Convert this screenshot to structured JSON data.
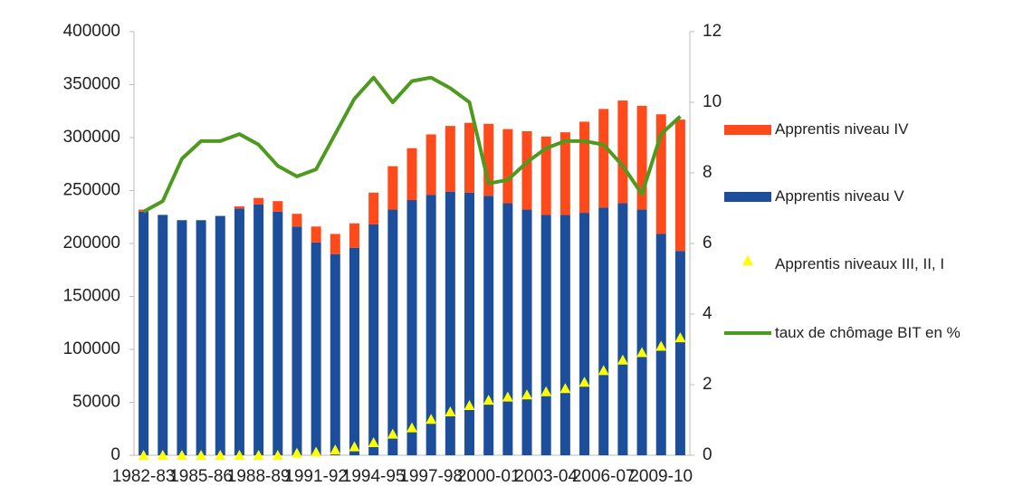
{
  "chart_data": {
    "type": "bar",
    "categories": [
      "1982-83",
      null,
      null,
      "1985-86",
      null,
      null,
      "1988-89",
      null,
      null,
      "1991-92",
      null,
      null,
      "1994-95",
      null,
      null,
      "1997-98",
      null,
      null,
      "2000-01",
      null,
      null,
      "2003-04",
      null,
      null,
      "2006-07",
      null,
      null,
      "2009-10",
      null
    ],
    "series": [
      {
        "name": "Apprentis niveau IV",
        "color": "#ff4a1c",
        "type": "bar",
        "values": [
          2000,
          0,
          0,
          0,
          0,
          2000,
          6000,
          10000,
          12000,
          15000,
          19000,
          23000,
          30000,
          41000,
          49000,
          57000,
          62000,
          66000,
          68000,
          70000,
          74000,
          74000,
          78000,
          86000,
          93000,
          97000,
          98000,
          113000,
          124000
        ]
      },
      {
        "name": "Apprentis niveau V",
        "color": "#1c4e9c",
        "type": "bar",
        "values": [
          230000,
          227000,
          222000,
          222000,
          226000,
          233000,
          237000,
          230000,
          216000,
          201000,
          190000,
          196000,
          218000,
          232000,
          241000,
          246000,
          249000,
          248000,
          245000,
          238000,
          232000,
          227000,
          227000,
          229000,
          234000,
          238000,
          232000,
          209000,
          193000
        ]
      },
      {
        "name": "Apprentis niveaux III, II, I",
        "color": "#ffff00",
        "type": "scatter",
        "values": [
          0,
          0,
          0,
          0,
          0,
          0,
          0,
          0,
          2000,
          3000,
          5000,
          8000,
          12000,
          20000,
          26000,
          34000,
          41000,
          47000,
          52000,
          55000,
          57000,
          60000,
          63000,
          69000,
          80000,
          90000,
          97000,
          103000,
          111000
        ]
      },
      {
        "name": "taux de chômage BIT en %",
        "color": "#4e9a1e",
        "type": "line",
        "axis": "y2",
        "values": [
          6.9,
          7.2,
          8.4,
          8.9,
          8.9,
          9.1,
          8.8,
          8.2,
          7.9,
          8.1,
          9.1,
          10.1,
          10.7,
          10.0,
          10.6,
          10.7,
          10.4,
          10.0,
          7.7,
          7.8,
          8.3,
          8.7,
          8.9,
          8.9,
          8.8,
          8.2,
          7.4,
          9.1,
          9.6
        ]
      }
    ],
    "ylim": [
      0,
      400000
    ],
    "yticks": [
      0,
      50000,
      100000,
      150000,
      200000,
      250000,
      300000,
      350000,
      400000
    ],
    "y2lim": [
      0,
      12
    ],
    "y2ticks": [
      0,
      2,
      4,
      6,
      8,
      10,
      12
    ],
    "legend": "right"
  }
}
